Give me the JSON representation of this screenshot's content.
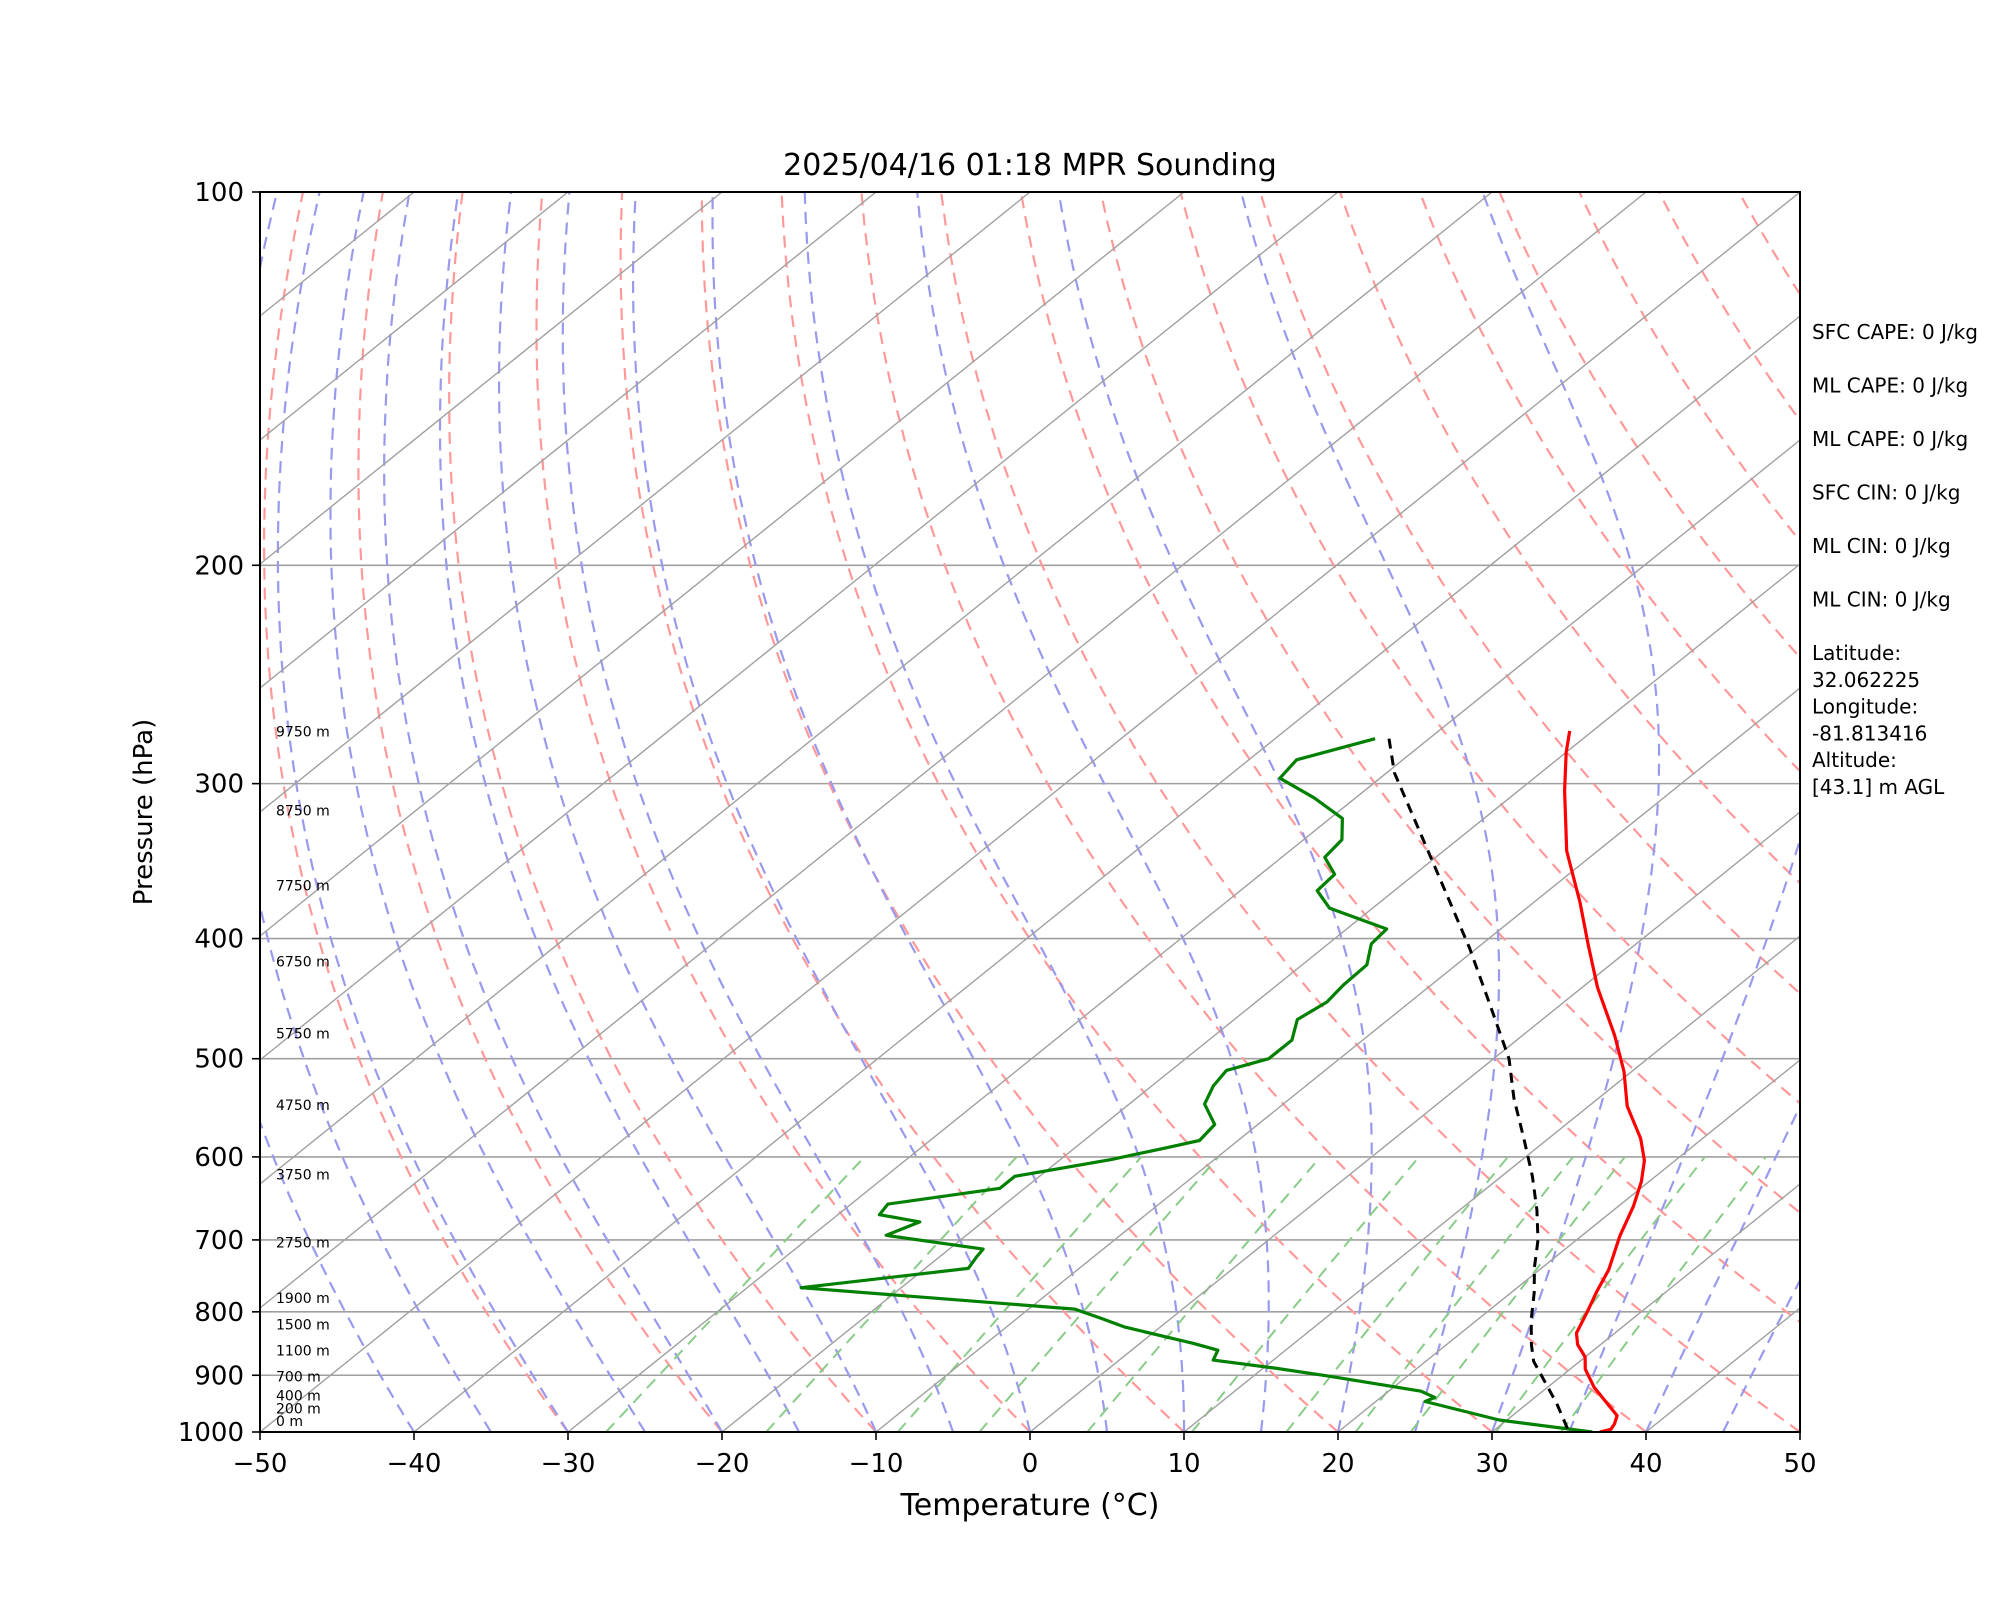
{
  "colors": {
    "temperature": "#ff0000",
    "dewpoint": "#008000",
    "parcel": "#000000",
    "isotherm": "#a0a0a0",
    "isobar": "#a0a0a0",
    "dry_adiabat": "#ff9999",
    "moist_adiabat": "#9999ee",
    "mixing_ratio": "#88cc88"
  },
  "chart_data": {
    "type": "line",
    "subtype": "skew-T log-P",
    "title": "2025/04/16 01:18 MPR Sounding",
    "xlabel": "Temperature (°C)",
    "ylabel": "Pressure (hPa)",
    "xlim": [
      -50,
      50
    ],
    "ylim": [
      1000,
      100
    ],
    "y_scale": "log",
    "x_ticks": [
      "−50",
      "−40",
      "−30",
      "−20",
      "−10",
      "0",
      "10",
      "20",
      "30",
      "40",
      "50"
    ],
    "x_tick_values": [
      -50,
      -40,
      -30,
      -20,
      -10,
      0,
      10,
      20,
      30,
      40,
      50
    ],
    "y_ticks": [
      "100",
      "200",
      "300",
      "400",
      "500",
      "600",
      "700",
      "800",
      "900",
      "1000"
    ],
    "y_tick_values": [
      100,
      200,
      300,
      400,
      500,
      600,
      700,
      800,
      900,
      1000
    ],
    "grid": true,
    "height_labels": [
      {
        "text": "0 m",
        "p": 1000
      },
      {
        "text": "200 m",
        "p": 977
      },
      {
        "text": "400 m",
        "p": 954
      },
      {
        "text": "700 m",
        "p": 921
      },
      {
        "text": "1100 m",
        "p": 877
      },
      {
        "text": "1500 m",
        "p": 836
      },
      {
        "text": "1900 m",
        "p": 796
      },
      {
        "text": "2750 m",
        "p": 718
      },
      {
        "text": "3750 m",
        "p": 633
      },
      {
        "text": "4750 m",
        "p": 556
      },
      {
        "text": "5750 m",
        "p": 487
      },
      {
        "text": "6750 m",
        "p": 426
      },
      {
        "text": "7750 m",
        "p": 370
      },
      {
        "text": "8750 m",
        "p": 322
      },
      {
        "text": "9750 m",
        "p": 278
      }
    ],
    "series": [
      {
        "key": "temperature",
        "points": [
          [
            -21.5,
            272
          ],
          [
            -20,
            283
          ],
          [
            -17,
            304
          ],
          [
            -12,
            340
          ],
          [
            -7,
            374
          ],
          [
            -3,
            405
          ],
          [
            1,
            438
          ],
          [
            6,
            479
          ],
          [
            9.5,
            512
          ],
          [
            12.5,
            546
          ],
          [
            16,
            580
          ],
          [
            18,
            604
          ],
          [
            19.5,
            628
          ],
          [
            21,
            658
          ],
          [
            22.5,
            695
          ],
          [
            24.5,
            740
          ],
          [
            25.5,
            771
          ],
          [
            26.5,
            800
          ],
          [
            27.5,
            832
          ],
          [
            28.5,
            850
          ],
          [
            30,
            870
          ],
          [
            31,
            890
          ],
          [
            33,
            920
          ],
          [
            35,
            946
          ],
          [
            36.8,
            970
          ],
          [
            37.3,
            985
          ],
          [
            37.5,
            995
          ],
          [
            37,
            1000
          ]
        ]
      },
      {
        "key": "dewpoint",
        "points": [
          [
            -33.5,
            276
          ],
          [
            -36.9,
            287
          ],
          [
            -36.5,
            297
          ],
          [
            -32.7,
            308
          ],
          [
            -29.2,
            320
          ],
          [
            -27.5,
            333
          ],
          [
            -27.2,
            344
          ],
          [
            -25.2,
            355
          ],
          [
            -25.0,
            366
          ],
          [
            -22.8,
            378
          ],
          [
            -17.4,
            393
          ],
          [
            -17.2,
            404
          ],
          [
            -15.8,
            420
          ],
          [
            -15.7,
            436
          ],
          [
            -15.4,
            450
          ],
          [
            -15.9,
            465
          ],
          [
            -14.6,
            483
          ],
          [
            -14.6,
            500
          ],
          [
            -16.4,
            511
          ],
          [
            -16.0,
            526
          ],
          [
            -15.1,
            544
          ],
          [
            -12.8,
            565
          ],
          [
            -12.5,
            582
          ],
          [
            -14.1,
            590
          ],
          [
            -16.7,
            603
          ],
          [
            -21.6,
            622
          ],
          [
            -21.6,
            636
          ],
          [
            -27.6,
            655
          ],
          [
            -27.3,
            668
          ],
          [
            -24.1,
            677
          ],
          [
            -25.2,
            694
          ],
          [
            -17.8,
            712
          ],
          [
            -17.6,
            722
          ],
          [
            -17.2,
            738
          ],
          [
            -26.5,
            765
          ],
          [
            -7.0,
            796
          ],
          [
            -4.5,
            810
          ],
          [
            -2.3,
            823
          ],
          [
            1.8,
            841
          ],
          [
            3.4,
            848
          ],
          [
            5.6,
            859
          ],
          [
            6.1,
            875
          ],
          [
            10.7,
            888
          ],
          [
            14.8,
            901
          ],
          [
            22.1,
            927
          ],
          [
            23.5,
            938
          ],
          [
            23.2,
            945
          ],
          [
            29.5,
            978
          ],
          [
            36.5,
            1000
          ]
        ]
      },
      {
        "key": "parcel",
        "points": [
          [
            -32.6,
            276
          ],
          [
            -29.5,
            294
          ],
          [
            -24,
            323
          ],
          [
            -17.5,
            361
          ],
          [
            -10.5,
            407
          ],
          [
            -4.5,
            453
          ],
          [
            1,
            500
          ],
          [
            4.5,
            538
          ],
          [
            8.5,
            581
          ],
          [
            12,
            622
          ],
          [
            15,
            662
          ],
          [
            17.5,
            700
          ],
          [
            19.5,
            737
          ],
          [
            21.5,
            772
          ],
          [
            23.5,
            812
          ],
          [
            25.5,
            850
          ],
          [
            27,
            877
          ],
          [
            30,
            920
          ],
          [
            32,
            950
          ],
          [
            35,
            1000
          ]
        ]
      }
    ]
  },
  "info_panel": [
    {
      "id": "sfc-cape",
      "text": "SFC CAPE: 0 J/kg"
    },
    {
      "id": "ml-cape-1",
      "text": "ML CAPE: 0 J/kg"
    },
    {
      "id": "ml-cape-2",
      "text": "ML CAPE: 0 J/kg"
    },
    {
      "id": "sfc-cin",
      "text": "SFC CIN: 0 J/kg"
    },
    {
      "id": "ml-cin-1",
      "text": "ML CIN: 0 J/kg"
    },
    {
      "id": "ml-cin-2",
      "text": "ML CIN: 0 J/kg"
    },
    {
      "id": "latitude",
      "lines": [
        "Latitude:",
        "32.062225"
      ]
    },
    {
      "id": "longitude",
      "lines": [
        "Longitude:",
        "-81.813416"
      ]
    },
    {
      "id": "altitude",
      "lines": [
        "Altitude:",
        "[43.1] m AGL"
      ]
    }
  ]
}
